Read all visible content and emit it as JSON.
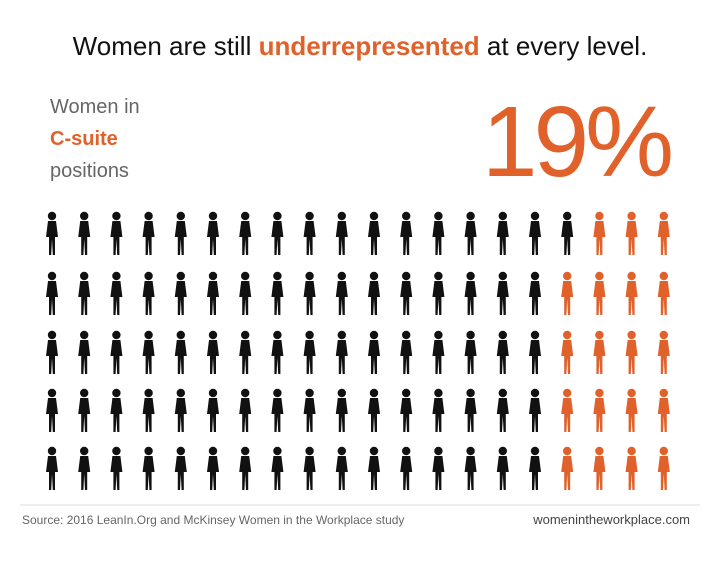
{
  "chart_data": {
    "type": "pictogram",
    "title": {
      "before": "Women are still",
      "highlight": "underrepresented",
      "after": "at every level."
    },
    "label": {
      "line1": "Women in",
      "line2": "C-suite",
      "line3": "positions"
    },
    "values": [
      19
    ],
    "value_labels": [
      "19%"
    ],
    "color": "#e0622a",
    "base_color": "#111111",
    "source": "Source: 2016 LeanIn.Org and McKinsey Women in the Workplace study",
    "website": "womenintheworkplace.com"
  }
}
